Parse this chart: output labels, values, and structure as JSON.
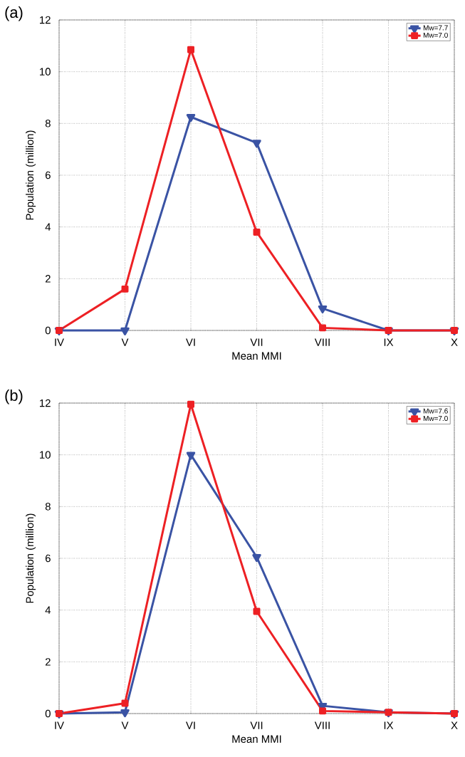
{
  "chart_data": [
    {
      "type": "line",
      "title": "(a)",
      "xlabel": "Mean MMI",
      "ylabel": "Population (million)",
      "categories": [
        "IV",
        "V",
        "VI",
        "VII",
        "VIII",
        "IX",
        "X"
      ],
      "series": [
        {
          "name": "Mw=7.7",
          "color": "#3a53a4",
          "marker": "triangle",
          "values": [
            0,
            0,
            8.25,
            7.25,
            0.85,
            0,
            0
          ]
        },
        {
          "name": "Mw=7.0",
          "color": "#ed2024",
          "marker": "square",
          "values": [
            0,
            1.6,
            10.85,
            3.8,
            0.1,
            0,
            0
          ]
        }
      ],
      "ylim": [
        0,
        12
      ],
      "yticks": [
        0,
        2,
        4,
        6,
        8,
        10,
        12
      ],
      "grid": true,
      "legend": "top right",
      "line_style": "solid"
    },
    {
      "type": "line",
      "title": "(b)",
      "xlabel": "Mean MMI",
      "ylabel": "Population (million)",
      "categories": [
        "IV",
        "V",
        "VI",
        "VII",
        "VIII",
        "IX",
        "X"
      ],
      "series": [
        {
          "name": "Mw=7.6",
          "color": "#3a53a4",
          "marker": "triangle",
          "values": [
            0,
            0.05,
            10,
            6.05,
            0.3,
            0.05,
            0
          ]
        },
        {
          "name": "Mw=7.0",
          "color": "#ed2024",
          "marker": "square",
          "values": [
            0,
            0.4,
            11.95,
            3.95,
            0.1,
            0.05,
            0
          ]
        }
      ],
      "ylim": [
        0,
        12
      ],
      "yticks": [
        0,
        2,
        4,
        6,
        8,
        10,
        12
      ],
      "grid": true,
      "legend": "top right",
      "line_style": "solid"
    }
  ]
}
